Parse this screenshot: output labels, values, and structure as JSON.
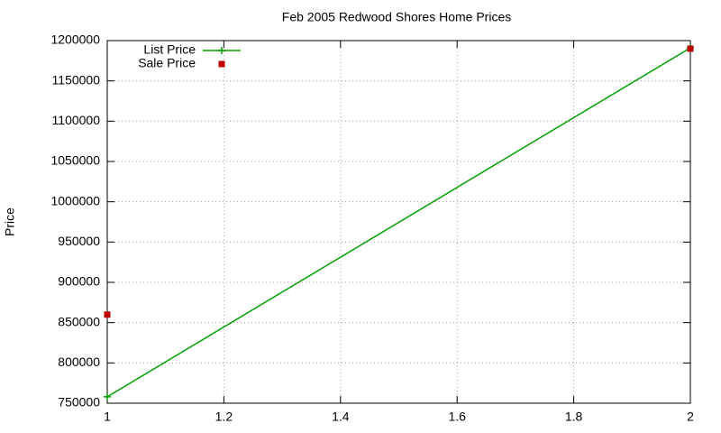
{
  "chart_data": {
    "type": "line",
    "title": "Feb 2005 Redwood Shores Home Prices",
    "y_label": "Price",
    "x": [
      1,
      2
    ],
    "series": [
      {
        "name": "List Price",
        "color": "#00a000",
        "line": true,
        "marker": "plus",
        "values": [
          758000,
          1191000
        ]
      },
      {
        "name": "Sale Price",
        "color": "#c00000",
        "line": false,
        "marker": "square",
        "values": [
          860000,
          1190000
        ]
      }
    ],
    "xlim": [
      1,
      2
    ],
    "xticks": [
      1,
      1.2,
      1.4,
      1.6,
      1.8,
      2
    ],
    "ylim": [
      750000,
      1200000
    ],
    "yticks": [
      750000,
      800000,
      850000,
      900000,
      950000,
      1000000,
      1050000,
      1100000,
      1150000,
      1200000
    ],
    "grid": true,
    "legend": "top-left"
  }
}
